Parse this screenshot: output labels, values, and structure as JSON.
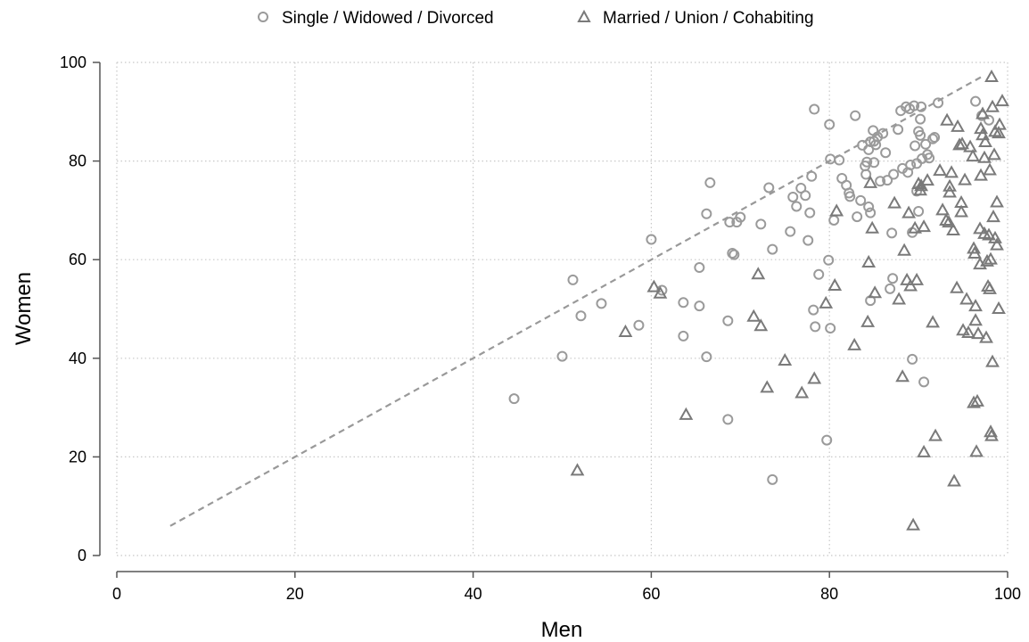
{
  "chart_data": {
    "type": "scatter",
    "xlabel": "Men",
    "ylabel": "Women",
    "xlim": [
      0,
      100
    ],
    "ylim": [
      0,
      100
    ],
    "xticks": [
      "0",
      "20",
      "40",
      "60",
      "80",
      "100"
    ],
    "yticks": [
      "0",
      "20",
      "40",
      "60",
      "80",
      "100"
    ],
    "grid": true,
    "legend_position": "top",
    "reference_line": {
      "from": [
        6,
        6
      ],
      "to": [
        97,
        97
      ],
      "style": "dashed",
      "color": "#999999"
    },
    "series": [
      {
        "name": "Single / Widowed / Divorced",
        "marker": "circle",
        "color": "#9a9a9a",
        "points": [
          [
            44.6,
            31.8
          ],
          [
            50,
            40.4
          ],
          [
            51.2,
            55.9
          ],
          [
            52.1,
            48.6
          ],
          [
            54.4,
            51.1
          ],
          [
            58.6,
            46.7
          ],
          [
            60,
            64.1
          ],
          [
            61.2,
            53.8
          ],
          [
            63.6,
            44.5
          ],
          [
            63.6,
            51.3
          ],
          [
            65.4,
            58.4
          ],
          [
            65.4,
            50.6
          ],
          [
            66.2,
            69.3
          ],
          [
            66.6,
            75.6
          ],
          [
            66.2,
            40.3
          ],
          [
            68.6,
            27.6
          ],
          [
            68.6,
            47.6
          ],
          [
            68.8,
            67.6
          ],
          [
            69.1,
            61.3
          ],
          [
            69.3,
            61
          ],
          [
            69.6,
            67.6
          ],
          [
            70,
            68.6
          ],
          [
            72.3,
            67.2
          ],
          [
            73.2,
            74.6
          ],
          [
            73.6,
            62.1
          ],
          [
            73.6,
            15.4
          ],
          [
            75.6,
            65.7
          ],
          [
            75.9,
            72.7
          ],
          [
            76.3,
            70.8
          ],
          [
            76.8,
            74.5
          ],
          [
            77.3,
            73
          ],
          [
            77.6,
            63.9
          ],
          [
            77.8,
            69.5
          ],
          [
            78,
            76.9
          ],
          [
            78.3,
            90.5
          ],
          [
            78.4,
            46.4
          ],
          [
            78.2,
            49.8
          ],
          [
            78.8,
            57
          ],
          [
            79.7,
            23.4
          ],
          [
            79.9,
            59.9
          ],
          [
            80,
            87.4
          ],
          [
            80.1,
            80.4
          ],
          [
            80.1,
            46.1
          ],
          [
            80.5,
            68
          ],
          [
            81.1,
            80.2
          ],
          [
            81.4,
            76.5
          ],
          [
            81.9,
            75.1
          ],
          [
            82.2,
            73.5
          ],
          [
            82.3,
            72.8
          ],
          [
            82.9,
            89.2
          ],
          [
            83.1,
            68.7
          ],
          [
            83.5,
            72
          ],
          [
            83.7,
            83.2
          ],
          [
            84,
            79
          ],
          [
            84.1,
            77.3
          ],
          [
            84.2,
            79.8
          ],
          [
            84.4,
            82.3
          ],
          [
            84.4,
            70.7
          ],
          [
            84.6,
            83.9
          ],
          [
            84.6,
            51.7
          ],
          [
            84.6,
            69.5
          ],
          [
            84.9,
            86.2
          ],
          [
            85,
            79.7
          ],
          [
            85,
            84
          ],
          [
            85.2,
            83.3
          ],
          [
            85.4,
            84.9
          ],
          [
            85.7,
            75.9
          ],
          [
            86,
            85.6
          ],
          [
            86.3,
            81.7
          ],
          [
            86.5,
            76.1
          ],
          [
            86.8,
            54.1
          ],
          [
            87,
            65.4
          ],
          [
            87.1,
            56.2
          ],
          [
            87.2,
            77.3
          ],
          [
            87.7,
            86.4
          ],
          [
            88,
            90.2
          ],
          [
            88.2,
            78.5
          ],
          [
            88.6,
            91
          ],
          [
            88.8,
            77.7
          ],
          [
            89,
            90.6
          ],
          [
            89.1,
            79.2
          ],
          [
            89.3,
            39.8
          ],
          [
            89.3,
            65.5
          ],
          [
            89.5,
            91.2
          ],
          [
            89.6,
            83.1
          ],
          [
            89.8,
            73.9
          ],
          [
            89.8,
            79.5
          ],
          [
            90,
            86
          ],
          [
            90,
            69.8
          ],
          [
            90.2,
            85.2
          ],
          [
            90.2,
            88.5
          ],
          [
            90.3,
            91
          ],
          [
            90.4,
            80.5
          ],
          [
            90.6,
            35.2
          ],
          [
            90.8,
            83.4
          ],
          [
            91,
            81.3
          ],
          [
            91.2,
            80.6
          ],
          [
            91.6,
            84.5
          ],
          [
            91.8,
            84.8
          ],
          [
            92.2,
            91.8
          ],
          [
            96.4,
            92.1
          ],
          [
            97.1,
            89.2
          ],
          [
            97.9,
            88.3
          ]
        ]
      },
      {
        "name": "Married / Union / Cohabiting",
        "marker": "triangle",
        "color": "#7a7a7a",
        "points": [
          [
            51.7,
            17.3
          ],
          [
            57.1,
            45.4
          ],
          [
            60.3,
            54.5
          ],
          [
            61,
            53.2
          ],
          [
            63.9,
            28.6
          ],
          [
            71.5,
            48.5
          ],
          [
            72,
            57.1
          ],
          [
            72.3,
            46.6
          ],
          [
            73,
            34.1
          ],
          [
            75,
            39.6
          ],
          [
            76.9,
            33
          ],
          [
            78.3,
            35.9
          ],
          [
            79.6,
            51.2
          ],
          [
            80.6,
            54.8
          ],
          [
            80.8,
            69.9
          ],
          [
            82.8,
            42.7
          ],
          [
            84.3,
            47.4
          ],
          [
            84.4,
            59.5
          ],
          [
            84.6,
            75.6
          ],
          [
            84.8,
            66.4
          ],
          [
            85.1,
            53.3
          ],
          [
            87.3,
            71.5
          ],
          [
            87.8,
            52
          ],
          [
            88.2,
            36.3
          ],
          [
            88.4,
            61.9
          ],
          [
            88.7,
            55.9
          ],
          [
            88.9,
            69.5
          ],
          [
            89.1,
            54.7
          ],
          [
            89.4,
            6.2
          ],
          [
            89.6,
            66.4
          ],
          [
            89.8,
            55.9
          ],
          [
            90,
            75.4
          ],
          [
            90.2,
            74.1
          ],
          [
            90.3,
            75
          ],
          [
            90.6,
            21
          ],
          [
            90.6,
            66.7
          ],
          [
            91,
            76.1
          ],
          [
            91.6,
            47.3
          ],
          [
            91.9,
            24.3
          ],
          [
            92.4,
            78.1
          ],
          [
            92.7,
            70.1
          ],
          [
            93.1,
            68
          ],
          [
            93.2,
            88.3
          ],
          [
            93.4,
            67.6
          ],
          [
            93.5,
            73.7
          ],
          [
            93.5,
            74.9
          ],
          [
            93.7,
            77.7
          ],
          [
            93.9,
            66
          ],
          [
            94,
            15.1
          ],
          [
            94.3,
            54.3
          ],
          [
            94.4,
            87
          ],
          [
            94.6,
            83.3
          ],
          [
            94.8,
            71.6
          ],
          [
            94.8,
            69.7
          ],
          [
            94.9,
            83.5
          ],
          [
            95,
            45.7
          ],
          [
            95.2,
            76.2
          ],
          [
            95.4,
            52
          ],
          [
            95.6,
            45.2
          ],
          [
            95.8,
            82.9
          ],
          [
            96.1,
            81
          ],
          [
            96.2,
            31
          ],
          [
            96.2,
            62.3
          ],
          [
            96.3,
            61.3
          ],
          [
            96.4,
            47.7
          ],
          [
            96.4,
            50.6
          ],
          [
            96.5,
            21.1
          ],
          [
            96.6,
            31.3
          ],
          [
            96.7,
            45
          ],
          [
            96.9,
            59.1
          ],
          [
            96.9,
            66.3
          ],
          [
            97,
            86.6
          ],
          [
            97,
            77.1
          ],
          [
            97.2,
            85.3
          ],
          [
            97.2,
            89.6
          ],
          [
            97.4,
            80.7
          ],
          [
            97.4,
            65.3
          ],
          [
            97.5,
            83.9
          ],
          [
            97.6,
            44.2
          ],
          [
            97.7,
            59.7
          ],
          [
            97.8,
            54.6
          ],
          [
            97.9,
            65
          ],
          [
            98,
            78.2
          ],
          [
            98,
            54.1
          ],
          [
            98.1,
            60.1
          ],
          [
            98.1,
            25.1
          ],
          [
            98.2,
            24.3
          ],
          [
            98.2,
            97.1
          ],
          [
            98.3,
            91
          ],
          [
            98.3,
            39.3
          ],
          [
            98.4,
            68.7
          ],
          [
            98.5,
            81.3
          ],
          [
            98.6,
            64.4
          ],
          [
            98.6,
            86
          ],
          [
            98.8,
            63
          ],
          [
            98.8,
            71.7
          ],
          [
            99,
            85.7
          ],
          [
            99.1,
            87.4
          ],
          [
            99,
            50.1
          ],
          [
            99.4,
            92.2
          ]
        ]
      }
    ]
  }
}
